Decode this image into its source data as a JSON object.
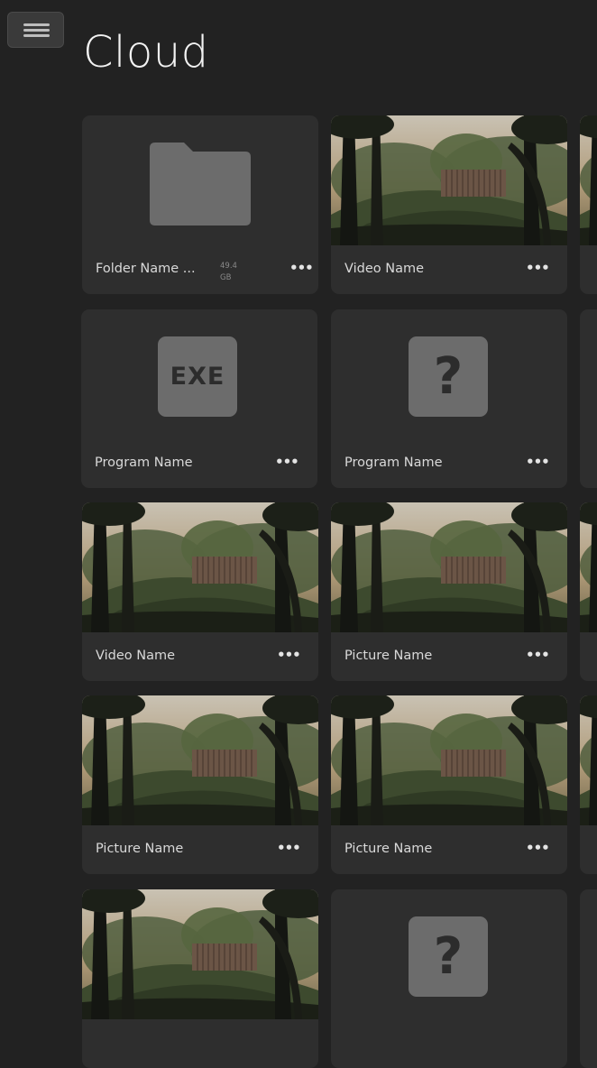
{
  "header": {
    "title": "Cloud",
    "menu_icon": "hamburger-icon"
  },
  "cards": [
    {
      "type": "folder",
      "name": "Folder Name ...",
      "size_value": "49.4",
      "size_unit": "GB"
    },
    {
      "type": "video",
      "name": "Video Name"
    },
    {
      "type": "program",
      "name": "Program Name",
      "icon": "exe-icon",
      "icon_text": "EXE"
    },
    {
      "type": "program",
      "name": "Program Name",
      "icon": "unknown-file-icon",
      "icon_text": "?"
    },
    {
      "type": "video",
      "name": "Video Name"
    },
    {
      "type": "picture",
      "name": "Picture Name"
    },
    {
      "type": "picture",
      "name": "Picture Name"
    },
    {
      "type": "picture",
      "name": "Picture Name"
    },
    {
      "type": "picture",
      "name": ""
    },
    {
      "type": "program",
      "name": "",
      "icon": "unknown-file-icon",
      "icon_text": "?"
    }
  ],
  "more_label": "•••",
  "colors": {
    "background": "#222222",
    "card": "#2e2e2e",
    "icon_tile": "#6c6c6c",
    "folder": "#6c6c6c"
  }
}
